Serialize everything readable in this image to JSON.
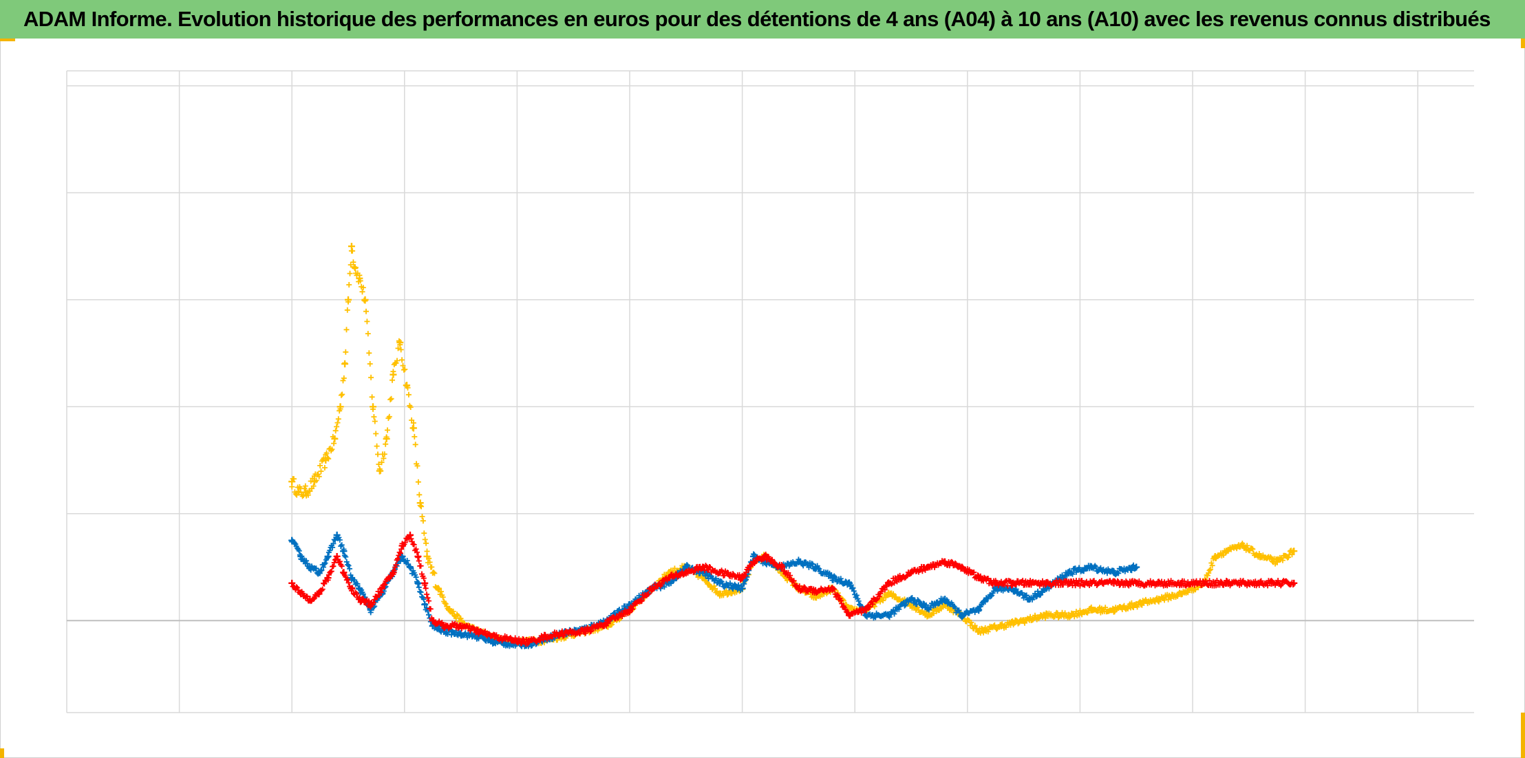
{
  "title": "ADAM Informe. Evolution historique des performances en euros pour des détentions de 4 ans (A04) à 10 ans (A10) avec les revenus connus distribués",
  "colors": {
    "title_bg": "#7fc97a",
    "accent_corner": "#f4b400",
    "grid": "#d9d9d9",
    "zero_line": "#bfbfbf"
  },
  "chart_data": {
    "type": "scatter",
    "marker": "plus",
    "title": "ADAM Informe. Evolution historique des performances en euros pour des détentions de 4 ans (A04) à 10 ans (A10) avec les revenus connus distribués",
    "xlabel": "",
    "ylabel": "",
    "grid": true,
    "xlim": [
      0,
      12.5
    ],
    "ylim": [
      -0.86,
      5.14
    ],
    "x_gridlines": [
      1,
      2,
      3,
      4,
      5,
      6,
      7,
      8,
      9,
      10,
      11,
      12
    ],
    "y_gridlines": [
      1,
      2,
      3,
      4,
      5
    ],
    "zero_line": 0,
    "legend": "none",
    "series": [
      {
        "color": "#ffc000",
        "points": [
          [
            2.0,
            1.3
          ],
          [
            2.06,
            1.2
          ],
          [
            2.12,
            1.2
          ],
          [
            2.2,
            1.3
          ],
          [
            2.3,
            1.5
          ],
          [
            2.38,
            1.7
          ],
          [
            2.43,
            2.0
          ],
          [
            2.47,
            2.4
          ],
          [
            2.5,
            3.0
          ],
          [
            2.53,
            3.5
          ],
          [
            2.56,
            3.3
          ],
          [
            2.6,
            3.2
          ],
          [
            2.65,
            3.0
          ],
          [
            2.72,
            2.0
          ],
          [
            2.78,
            1.4
          ],
          [
            2.84,
            1.7
          ],
          [
            2.9,
            2.3
          ],
          [
            2.96,
            2.6
          ],
          [
            3.02,
            2.2
          ],
          [
            3.08,
            1.8
          ],
          [
            3.14,
            1.1
          ],
          [
            3.2,
            0.6
          ],
          [
            3.3,
            0.3
          ],
          [
            3.4,
            0.1
          ],
          [
            3.55,
            -0.05
          ],
          [
            3.7,
            -0.12
          ],
          [
            3.85,
            -0.18
          ],
          [
            4.0,
            -0.2
          ],
          [
            4.2,
            -0.19
          ],
          [
            4.4,
            -0.15
          ],
          [
            4.6,
            -0.1
          ],
          [
            4.8,
            -0.05
          ],
          [
            5.0,
            0.1
          ],
          [
            5.2,
            0.3
          ],
          [
            5.35,
            0.45
          ],
          [
            5.5,
            0.5
          ],
          [
            5.65,
            0.4
          ],
          [
            5.8,
            0.25
          ],
          [
            6.0,
            0.3
          ],
          [
            6.1,
            0.55
          ],
          [
            6.2,
            0.6
          ],
          [
            6.35,
            0.45
          ],
          [
            6.5,
            0.3
          ],
          [
            6.65,
            0.22
          ],
          [
            6.8,
            0.3
          ],
          [
            6.95,
            0.1
          ],
          [
            7.1,
            0.1
          ],
          [
            7.3,
            0.25
          ],
          [
            7.5,
            0.15
          ],
          [
            7.65,
            0.05
          ],
          [
            7.8,
            0.15
          ],
          [
            7.95,
            0.05
          ],
          [
            8.1,
            -0.1
          ],
          [
            8.3,
            -0.05
          ],
          [
            8.5,
            0.0
          ],
          [
            8.7,
            0.05
          ],
          [
            8.9,
            0.05
          ],
          [
            9.1,
            0.1
          ],
          [
            9.3,
            0.1
          ],
          [
            9.5,
            0.15
          ],
          [
            9.7,
            0.2
          ],
          [
            9.9,
            0.25
          ],
          [
            10.1,
            0.35
          ],
          [
            10.2,
            0.6
          ],
          [
            10.3,
            0.65
          ],
          [
            10.45,
            0.7
          ],
          [
            10.6,
            0.6
          ],
          [
            10.75,
            0.55
          ],
          [
            10.9,
            0.65
          ]
        ]
      },
      {
        "color": "#0070c0",
        "points": [
          [
            2.0,
            0.75
          ],
          [
            2.08,
            0.6
          ],
          [
            2.16,
            0.5
          ],
          [
            2.24,
            0.45
          ],
          [
            2.32,
            0.6
          ],
          [
            2.4,
            0.8
          ],
          [
            2.46,
            0.65
          ],
          [
            2.53,
            0.4
          ],
          [
            2.6,
            0.3
          ],
          [
            2.7,
            0.1
          ],
          [
            2.8,
            0.25
          ],
          [
            2.9,
            0.45
          ],
          [
            2.98,
            0.6
          ],
          [
            3.05,
            0.5
          ],
          [
            3.12,
            0.35
          ],
          [
            3.18,
            0.15
          ],
          [
            3.25,
            -0.05
          ],
          [
            3.35,
            -0.1
          ],
          [
            3.5,
            -0.12
          ],
          [
            3.65,
            -0.15
          ],
          [
            3.8,
            -0.2
          ],
          [
            3.95,
            -0.22
          ],
          [
            4.1,
            -0.22
          ],
          [
            4.25,
            -0.17
          ],
          [
            4.4,
            -0.12
          ],
          [
            4.6,
            -0.08
          ],
          [
            4.8,
            0.0
          ],
          [
            5.0,
            0.15
          ],
          [
            5.2,
            0.3
          ],
          [
            5.35,
            0.35
          ],
          [
            5.5,
            0.5
          ],
          [
            5.65,
            0.45
          ],
          [
            5.8,
            0.35
          ],
          [
            6.0,
            0.3
          ],
          [
            6.1,
            0.6
          ],
          [
            6.2,
            0.55
          ],
          [
            6.35,
            0.5
          ],
          [
            6.5,
            0.55
          ],
          [
            6.65,
            0.5
          ],
          [
            6.8,
            0.4
          ],
          [
            6.95,
            0.35
          ],
          [
            7.1,
            0.05
          ],
          [
            7.3,
            0.05
          ],
          [
            7.5,
            0.2
          ],
          [
            7.65,
            0.12
          ],
          [
            7.8,
            0.2
          ],
          [
            7.95,
            0.05
          ],
          [
            8.1,
            0.1
          ],
          [
            8.25,
            0.3
          ],
          [
            8.4,
            0.3
          ],
          [
            8.55,
            0.2
          ],
          [
            8.7,
            0.3
          ],
          [
            8.9,
            0.45
          ],
          [
            9.1,
            0.5
          ],
          [
            9.3,
            0.45
          ],
          [
            9.5,
            0.5
          ]
        ]
      },
      {
        "color": "#ff0000",
        "points": [
          [
            2.0,
            0.35
          ],
          [
            2.08,
            0.25
          ],
          [
            2.16,
            0.2
          ],
          [
            2.24,
            0.25
          ],
          [
            2.32,
            0.4
          ],
          [
            2.4,
            0.6
          ],
          [
            2.46,
            0.45
          ],
          [
            2.53,
            0.3
          ],
          [
            2.6,
            0.2
          ],
          [
            2.7,
            0.15
          ],
          [
            2.8,
            0.3
          ],
          [
            2.9,
            0.45
          ],
          [
            2.98,
            0.7
          ],
          [
            3.05,
            0.8
          ],
          [
            3.12,
            0.6
          ],
          [
            3.18,
            0.35
          ],
          [
            3.25,
            0.0
          ],
          [
            3.35,
            -0.05
          ],
          [
            3.5,
            -0.05
          ],
          [
            3.65,
            -0.1
          ],
          [
            3.8,
            -0.15
          ],
          [
            3.95,
            -0.18
          ],
          [
            4.1,
            -0.2
          ],
          [
            4.25,
            -0.15
          ],
          [
            4.4,
            -0.12
          ],
          [
            4.6,
            -0.1
          ],
          [
            4.8,
            -0.02
          ],
          [
            5.0,
            0.1
          ],
          [
            5.2,
            0.3
          ],
          [
            5.35,
            0.4
          ],
          [
            5.5,
            0.45
          ],
          [
            5.65,
            0.5
          ],
          [
            5.8,
            0.45
          ],
          [
            6.0,
            0.4
          ],
          [
            6.1,
            0.55
          ],
          [
            6.2,
            0.6
          ],
          [
            6.35,
            0.5
          ],
          [
            6.5,
            0.3
          ],
          [
            6.65,
            0.28
          ],
          [
            6.8,
            0.3
          ],
          [
            6.95,
            0.05
          ],
          [
            7.1,
            0.1
          ],
          [
            7.3,
            0.35
          ],
          [
            7.5,
            0.45
          ],
          [
            7.65,
            0.5
          ],
          [
            7.8,
            0.55
          ],
          [
            7.95,
            0.5
          ],
          [
            8.1,
            0.4
          ],
          [
            8.25,
            0.35
          ],
          [
            8.4,
            0.35
          ],
          [
            8.55,
            0.35
          ],
          [
            8.7,
            0.35
          ],
          [
            8.9,
            0.35
          ],
          [
            9.1,
            0.35
          ],
          [
            9.3,
            0.35
          ],
          [
            9.5,
            0.35
          ],
          [
            9.7,
            0.35
          ],
          [
            9.9,
            0.35
          ],
          [
            10.1,
            0.35
          ],
          [
            10.3,
            0.35
          ],
          [
            10.5,
            0.35
          ],
          [
            10.7,
            0.35
          ],
          [
            10.9,
            0.35
          ]
        ]
      }
    ]
  }
}
